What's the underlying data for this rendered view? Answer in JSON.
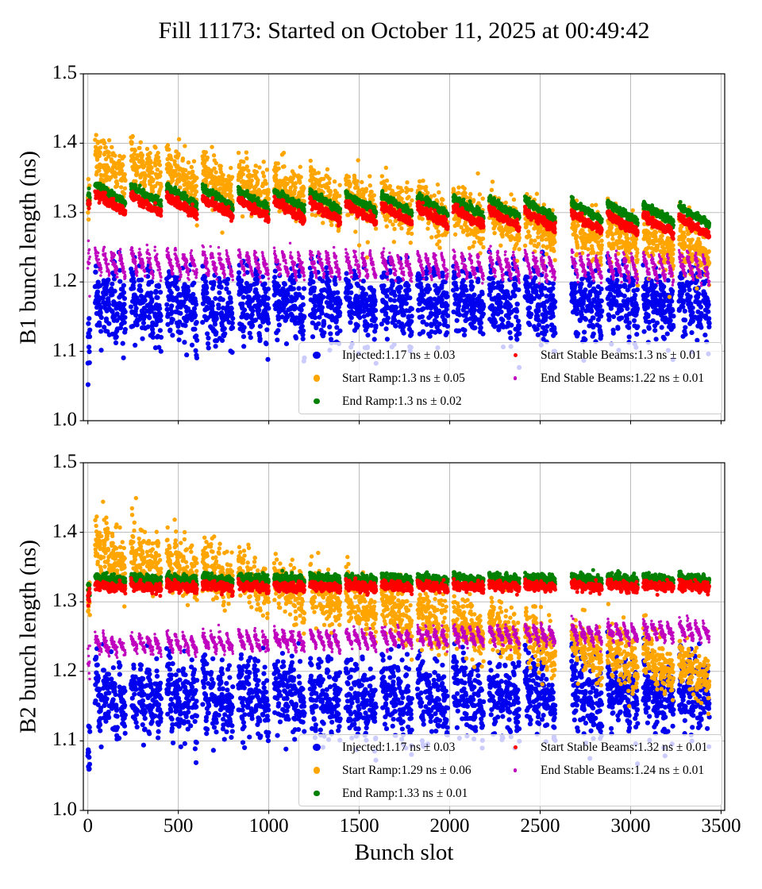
{
  "figure": {
    "title": "Fill 11173: Started on October 11, 2025 at 00:49:42",
    "xlabel": "Bunch slot"
  },
  "bunch_pattern": {
    "pilot_len": 12,
    "trains": 17,
    "first_start": 40,
    "spacing": 198,
    "subbatches": 4,
    "subbatch_len": 36,
    "subbatch_gap": 8,
    "train_span": 168,
    "big_gap_before_train": 13,
    "big_gap_extra": 60
  },
  "chart_data": [
    {
      "type": "scatter",
      "ylabel": "B1 bunch length (ns)",
      "xlabel": "",
      "xlim": [
        -25,
        3520
      ],
      "ylim": [
        1.0,
        1.5
      ],
      "grid": true,
      "show_xtick_labels": false,
      "ytick_labels": [
        "1.0",
        "1.1",
        "1.2",
        "1.3",
        "1.4",
        "1.5"
      ],
      "xtick_labels": [
        "0",
        "500",
        "1000",
        "1500",
        "2000",
        "2500",
        "3000",
        "3500"
      ],
      "legend": {
        "columns": [
          [
            0,
            1,
            2
          ],
          [
            3,
            4
          ]
        ]
      },
      "series": [
        {
          "name": "injected",
          "label": "Injected:1.17 ns ± 0.03",
          "mean_ns": 1.17,
          "std_ns": 0.03,
          "color": "#0000EE",
          "radius": 3.1,
          "legend_marker": 9.5,
          "gen": {
            "base0": 1.166,
            "slope": 1e-06,
            "train_amp": 0.008,
            "sub_amp": 0.018,
            "sigma": 0.023,
            "pilot": [
              1.1,
              0.025
            ],
            "out": [
              {
                "p": 0.008,
                "dv": -0.035
              }
            ]
          }
        },
        {
          "name": "start_ramp",
          "label": "Start Ramp:1.3 ns ± 0.05",
          "mean_ns": 1.3,
          "std_ns": 0.05,
          "color": "#FFA500",
          "radius": 2.7,
          "legend_marker": 8.5,
          "gen": {
            "base0": 1.372,
            "slope": -3.7e-05,
            "train_amp": 0.012,
            "sub_amp": 0.008,
            "sigma": 0.016,
            "pilot": [
              1.318,
              0.015
            ],
            "out": [
              {
                "p": 0.02,
                "dv": 0.03
              },
              {
                "p": 0.02,
                "dv": -0.035
              }
            ]
          }
        },
        {
          "name": "end_ramp",
          "label": "End Ramp:1.3 ns ± 0.02",
          "mean_ns": 1.3,
          "std_ns": 0.02,
          "color": "#008000",
          "radius": 2.5,
          "legend_marker": 7.5,
          "gen": {
            "base0": 1.328,
            "slope": -9.6e-06,
            "train_amp": 0.012,
            "sub_amp": 0.0015,
            "sigma": 0.0028,
            "pilot": [
              1.322,
              0.006
            ],
            "out": []
          }
        },
        {
          "name": "start_stable_beams",
          "label": "Start Stable Beams:1.3 ns ± 0.01",
          "mean_ns": 1.3,
          "std_ns": 0.01,
          "color": "#FF0000",
          "radius": 2.5,
          "legend_marker": 5,
          "gen": {
            "base0": 1.3155,
            "slope": -1.05e-05,
            "train_amp": 0.012,
            "sub_amp": 0.0015,
            "sigma": 0.0032,
            "pilot": [
              1.311,
              0.005
            ],
            "out": []
          }
        },
        {
          "name": "end_stable_beams",
          "label": "End Stable Beams:1.22 ns ± 0.01",
          "mean_ns": 1.22,
          "std_ns": 0.01,
          "color": "#BF00BF",
          "radius": 1.7,
          "legend_marker": 4.5,
          "gen": {
            "base0": 1.227,
            "slope": -2e-06,
            "train_amp": 0.003,
            "sub_amp": 0.016,
            "sigma": 0.0045,
            "pilot": [
              1.2275,
              0.013
            ],
            "out": []
          }
        }
      ]
    },
    {
      "type": "scatter",
      "ylabel": "B2 bunch length (ns)",
      "xlabel": "Bunch slot",
      "xlim": [
        -25,
        3520
      ],
      "ylim": [
        1.0,
        1.5
      ],
      "grid": true,
      "show_xtick_labels": true,
      "ytick_labels": [
        "1.0",
        "1.1",
        "1.2",
        "1.3",
        "1.4",
        "1.5"
      ],
      "xtick_labels": [
        "0",
        "500",
        "1000",
        "1500",
        "2000",
        "2500",
        "3000",
        "3500"
      ],
      "legend": {
        "columns": [
          [
            0,
            1,
            2
          ],
          [
            3,
            4
          ]
        ]
      },
      "series": [
        {
          "name": "injected",
          "label": "Injected:1.17 ns ± 0.03",
          "mean_ns": 1.17,
          "std_ns": 0.03,
          "color": "#0000EE",
          "radius": 3.1,
          "legend_marker": 9.5,
          "gen": {
            "base0": 1.16,
            "slope": 2e-06,
            "train_amp": 0.01,
            "sub_amp": 0.02,
            "sigma": 0.025,
            "pilot": [
              1.075,
              0.025
            ],
            "out": [
              {
                "p": 0.012,
                "dv": -0.045
              }
            ]
          }
        },
        {
          "name": "start_ramp",
          "label": "Start Ramp:1.29 ns ± 0.06",
          "mean_ns": 1.29,
          "std_ns": 0.06,
          "color": "#FFA500",
          "radius": 2.7,
          "legend_marker": 8.5,
          "gen": {
            "base0": 1.375,
            "slope": -5.2e-05,
            "train_amp": 0.012,
            "sub_amp": 0.01,
            "sigma": 0.018,
            "pilot": [
              1.302,
              0.015
            ],
            "out": [
              {
                "p": 0.06,
                "dv": 0.038,
                "max": 900
              },
              {
                "p": 0.02,
                "dv": -0.03
              }
            ]
          }
        },
        {
          "name": "end_ramp",
          "label": "End Ramp:1.33 ns ± 0.01",
          "mean_ns": 1.33,
          "std_ns": 0.01,
          "color": "#008000",
          "radius": 2.5,
          "legend_marker": 7.5,
          "gen": {
            "base0": 1.3325,
            "slope": 2e-07,
            "train_amp": 0.002,
            "sub_amp": 0.002,
            "sigma": 0.0032,
            "pilot": [
              1.317,
              0.007
            ],
            "out": []
          }
        },
        {
          "name": "start_stable_beams",
          "label": "Start Stable Beams:1.32 ns ± 0.01",
          "mean_ns": 1.32,
          "std_ns": 0.01,
          "color": "#FF0000",
          "radius": 2.5,
          "legend_marker": 5,
          "gen": {
            "base0": 1.3215,
            "slope": 2e-07,
            "train_amp": 0.002,
            "sub_amp": 0.002,
            "sigma": 0.0032,
            "pilot": [
              1.3095,
              0.006
            ],
            "out": []
          }
        },
        {
          "name": "end_stable_beams",
          "label": "End Stable Beams:1.24 ns ± 0.01",
          "mean_ns": 1.24,
          "std_ns": 0.01,
          "color": "#BF00BF",
          "radius": 1.7,
          "legend_marker": 4.5,
          "gen": {
            "base0": 1.2365,
            "slope": 6.5e-06,
            "train_amp": 0.003,
            "sub_amp": 0.011,
            "sigma": 0.004,
            "pilot": [
              1.217,
              0.016
            ],
            "out": []
          }
        }
      ]
    }
  ],
  "style": {
    "grid_color": "#b4b4b4",
    "spine_color": "#000000",
    "background": "#ffffff"
  }
}
